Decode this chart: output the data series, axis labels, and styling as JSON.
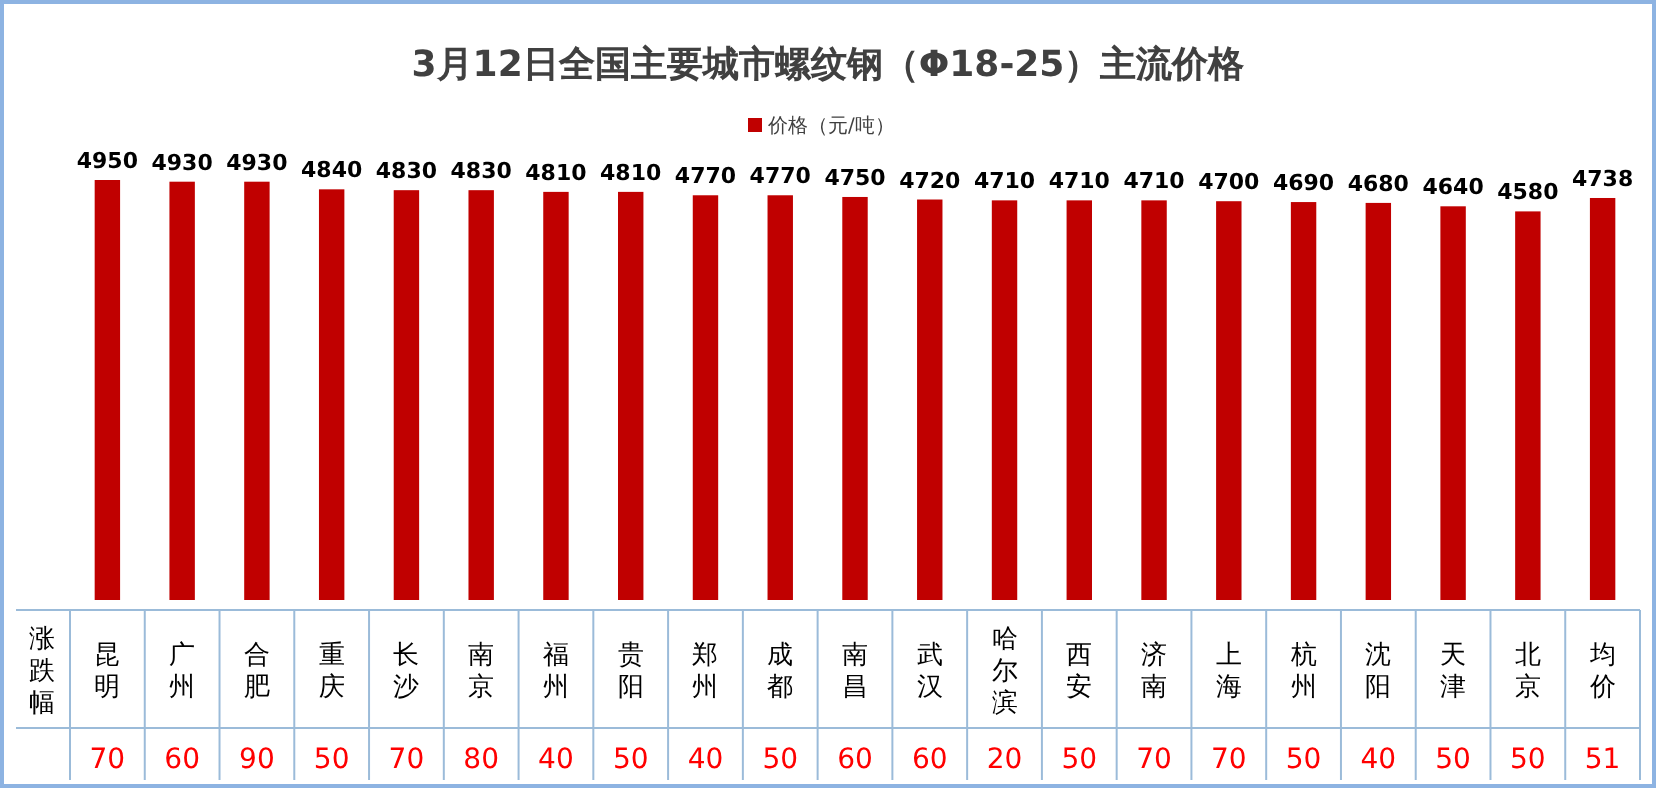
{
  "chart_data": [
    {
      "type": "bar",
      "title": "3月12日全国主要城市螺纹钢（Φ18-25）主流价格",
      "categories": [
        "昆明",
        "广州",
        "合肥",
        "重庆",
        "长沙",
        "南京",
        "福州",
        "贵阳",
        "郑州",
        "成都",
        "南昌",
        "武汉",
        "哈尔滨",
        "西安",
        "济南",
        "上海",
        "杭州",
        "沈阳",
        "天津",
        "北京",
        "均价"
      ],
      "series": [
        {
          "name": "价格（元/吨）",
          "color": "#c00000",
          "values": [
            4950,
            4930,
            4930,
            4840,
            4830,
            4830,
            4810,
            4810,
            4770,
            4770,
            4750,
            4720,
            4710,
            4710,
            4710,
            4700,
            4690,
            4680,
            4640,
            4580,
            4738
          ]
        }
      ],
      "data_labels": true,
      "legend": "top",
      "grid": false
    },
    {
      "type": "other",
      "ylabel": "涨跌幅",
      "categories": [
        null,
        null,
        null,
        null,
        null,
        null,
        null,
        null,
        null,
        null,
        null,
        null,
        null,
        null,
        null,
        null,
        null,
        null,
        null,
        null,
        null
      ],
      "values": [
        70,
        60,
        90,
        50,
        70,
        80,
        40,
        50,
        40,
        50,
        60,
        60,
        20,
        50,
        70,
        70,
        50,
        40,
        50,
        50,
        51
      ],
      "color": "#ff0000",
      "data_labels": true
    }
  ]
}
